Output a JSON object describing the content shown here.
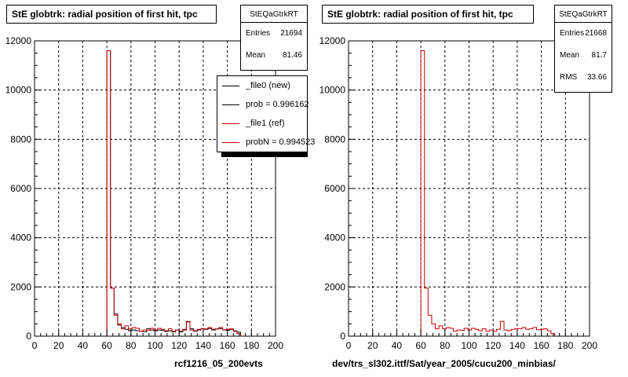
{
  "colors": {
    "new": "#000000",
    "ref": "#cc0000",
    "grid": "#000000"
  },
  "left": {
    "title": "StE globtrk: radial position of first hit, tpc",
    "stats": {
      "name": "StEQaGtrkRT",
      "rows": [
        {
          "label": "Entries",
          "value": "21694"
        },
        {
          "label": "Mean",
          "value": "81.46"
        }
      ]
    },
    "legend": [
      {
        "text": "_file0 (new)",
        "color": "#000000"
      },
      {
        "text": "prob = 0.996162",
        "color": "#000000"
      },
      {
        "text": "_file1 (ref)",
        "color": "#cc0000"
      },
      {
        "text": "probN = 0.994523",
        "color": "#cc0000"
      }
    ],
    "footer": "rcf1216_05_200evts"
  },
  "right": {
    "title": "StE globtrk: radial position of first hit, tpc",
    "stats": {
      "name": "StEQaGtrkRT",
      "rows": [
        {
          "label": "Entries",
          "value": "21668"
        },
        {
          "label": "Mean",
          "value": "81.7"
        },
        {
          "label": "RMS",
          "value": "33.66"
        }
      ]
    },
    "footer": "dev/trs_sl302.ittf/Sat/year_2005/cucu200_minbias/"
  },
  "chart_data": [
    {
      "type": "histogram",
      "title": "StE globtrk: radial position of first hit, tpc",
      "xlim": [
        0,
        200
      ],
      "ylim": [
        0,
        12000
      ],
      "xticks": [
        0,
        20,
        40,
        60,
        80,
        100,
        120,
        140,
        160,
        180,
        200
      ],
      "yticks": [
        0,
        2000,
        4000,
        6000,
        8000,
        10000,
        12000
      ],
      "grid": true,
      "bin_width": 3,
      "x_edges_start": 0,
      "series": [
        {
          "name": "_file0 (new)",
          "color": "#000000",
          "values": [
            0,
            0,
            0,
            0,
            0,
            0,
            0,
            0,
            0,
            0,
            0,
            0,
            0,
            0,
            0,
            0,
            0,
            0,
            0,
            0,
            11600,
            1950,
            900,
            450,
            350,
            280,
            220,
            250,
            220,
            200,
            180,
            300,
            250,
            220,
            250,
            230,
            190,
            220,
            170,
            250,
            170,
            250,
            580,
            300,
            200,
            250,
            300,
            280,
            310,
            250,
            290,
            310,
            250,
            240,
            280,
            200,
            160,
            0,
            0,
            0,
            0,
            0,
            0,
            0,
            0,
            0,
            0
          ]
        },
        {
          "name": "_file1 (ref)",
          "color": "#cc0000",
          "values": [
            0,
            0,
            0,
            0,
            0,
            0,
            0,
            0,
            0,
            0,
            0,
            0,
            0,
            0,
            0,
            0,
            0,
            0,
            0,
            0,
            11600,
            1950,
            850,
            500,
            300,
            420,
            300,
            350,
            320,
            200,
            250,
            230,
            320,
            250,
            320,
            280,
            220,
            300,
            200,
            250,
            200,
            280,
            600,
            250,
            220,
            280,
            300,
            300,
            350,
            280,
            300,
            350,
            260,
            280,
            300,
            220,
            100,
            0,
            0,
            0,
            0,
            0,
            0,
            0,
            0,
            0,
            0
          ]
        }
      ]
    },
    {
      "type": "histogram",
      "title": "StE globtrk: radial position of first hit, tpc",
      "xlim": [
        0,
        200
      ],
      "ylim": [
        0,
        12000
      ],
      "xticks": [
        0,
        20,
        40,
        60,
        80,
        100,
        120,
        140,
        160,
        180,
        200
      ],
      "yticks": [
        0,
        2000,
        4000,
        6000,
        8000,
        10000,
        12000
      ],
      "grid": true,
      "bin_width": 3,
      "x_edges_start": 0,
      "series": [
        {
          "name": "",
          "color": "#cc0000",
          "values": [
            0,
            0,
            0,
            0,
            0,
            0,
            0,
            0,
            0,
            0,
            0,
            0,
            0,
            0,
            0,
            0,
            0,
            0,
            0,
            0,
            11600,
            1950,
            850,
            500,
            300,
            420,
            300,
            350,
            320,
            200,
            250,
            230,
            320,
            250,
            320,
            280,
            220,
            300,
            200,
            250,
            200,
            280,
            600,
            250,
            220,
            280,
            300,
            300,
            350,
            280,
            300,
            350,
            260,
            280,
            300,
            220,
            100,
            0,
            0,
            0,
            0,
            0,
            0,
            0,
            0,
            0,
            0
          ]
        }
      ]
    }
  ]
}
